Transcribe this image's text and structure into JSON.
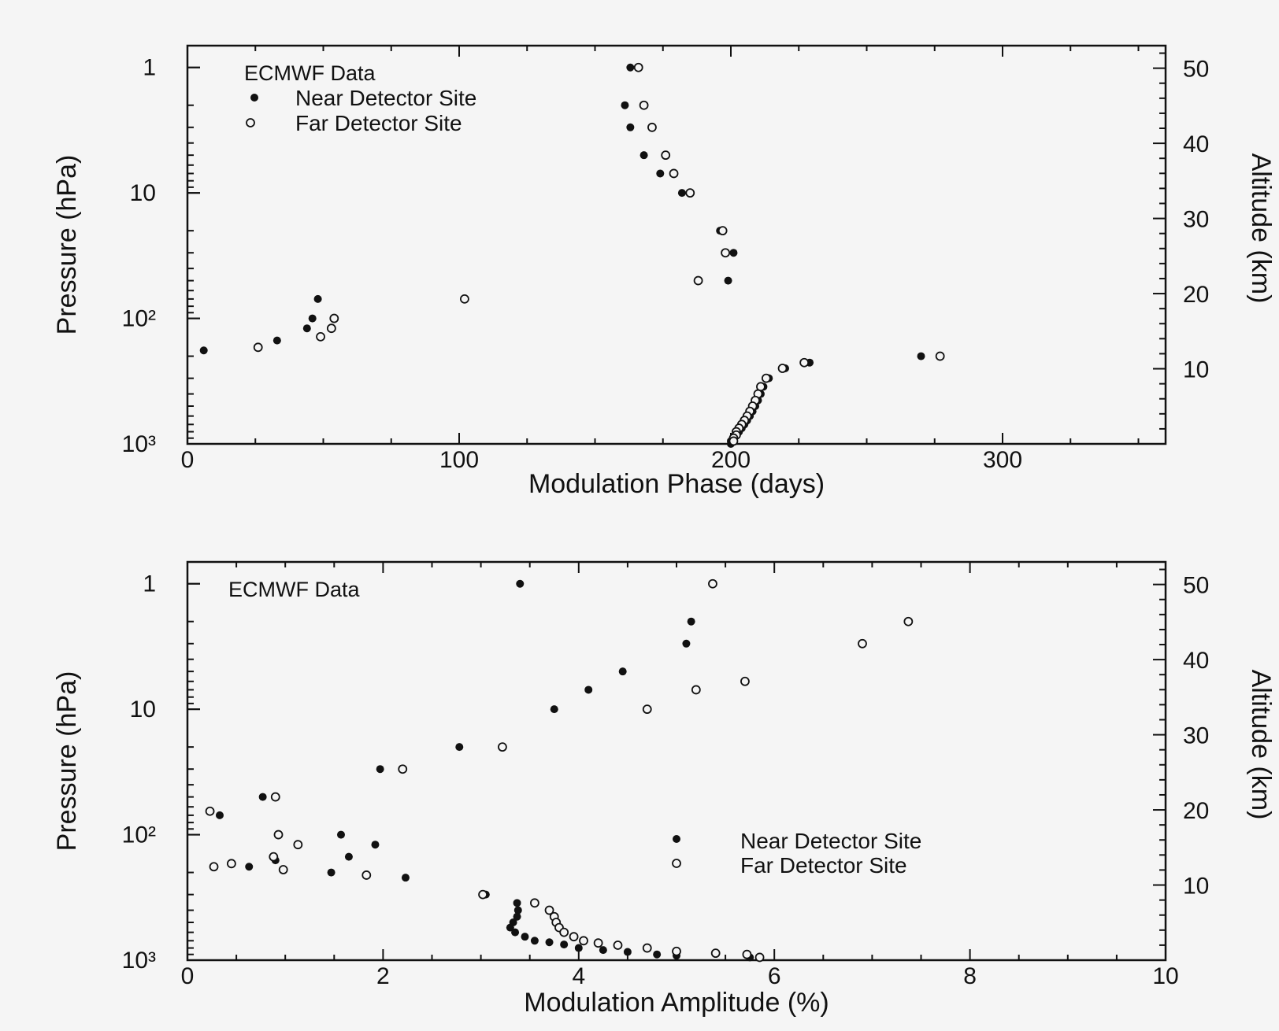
{
  "figure": {
    "background": "#f5f5f5",
    "ink_color": "#111111"
  },
  "chart_data": [
    {
      "type": "scatter",
      "title": "",
      "xlabel": "Modulation Phase (days)",
      "ylabel": "Pressure (hPa)",
      "y2label": "Altitude (km)",
      "xlim": [
        0,
        360
      ],
      "ylim": [
        1000,
        0.67
      ],
      "yscale": "log",
      "y_inverted": true,
      "y2lim": [
        0,
        53
      ],
      "grid": false,
      "x_ticks": [
        {
          "value": 0,
          "label": "0"
        },
        {
          "value": 100,
          "label": "100"
        },
        {
          "value": 200,
          "label": "200"
        },
        {
          "value": 300,
          "label": "300"
        }
      ],
      "y_ticks": [
        {
          "value": 1,
          "label": "1"
        },
        {
          "value": 10,
          "label": "10"
        },
        {
          "value": 100,
          "label": "10²"
        },
        {
          "value": 1000,
          "label": "10³"
        }
      ],
      "y2_ticks": [
        {
          "value": 10,
          "label": "10"
        },
        {
          "value": 20,
          "label": "20"
        },
        {
          "value": 30,
          "label": "30"
        },
        {
          "value": 40,
          "label": "40"
        },
        {
          "value": 50,
          "label": "50"
        }
      ],
      "legend": {
        "placement": "top-left",
        "header": "ECMWF Data",
        "entries": [
          {
            "label": "Near Detector Site",
            "marker": "filled-circle"
          },
          {
            "label": "Far Detector Site",
            "marker": "open-circle"
          }
        ]
      },
      "series": [
        {
          "name": "Near Detector Site",
          "marker": "filled",
          "points": [
            [
              163,
              1
            ],
            [
              161,
              2
            ],
            [
              163,
              3
            ],
            [
              168,
              5
            ],
            [
              174,
              7
            ],
            [
              182,
              10
            ],
            [
              196,
              20
            ],
            [
              201,
              30
            ],
            [
              199,
              50
            ],
            [
              48,
              70
            ],
            [
              46,
              100
            ],
            [
              44,
              120
            ],
            [
              33,
              150
            ],
            [
              6,
              180
            ],
            [
              270,
              200
            ],
            [
              229,
              225
            ],
            [
              220,
              250
            ],
            [
              214,
              300
            ],
            [
              212,
              350
            ],
            [
              211,
              400
            ],
            [
              210,
              450
            ],
            [
              209,
              500
            ],
            [
              208,
              550
            ],
            [
              207,
              600
            ],
            [
              206,
              650
            ],
            [
              205,
              700
            ],
            [
              204,
              750
            ],
            [
              203,
              800
            ],
            [
              202,
              850
            ],
            [
              201,
              900
            ],
            [
              200,
              950
            ],
            [
              200,
              1000
            ]
          ]
        },
        {
          "name": "Far Detector Site",
          "marker": "open",
          "points": [
            [
              166,
              1
            ],
            [
              168,
              2
            ],
            [
              171,
              3
            ],
            [
              176,
              5
            ],
            [
              179,
              7
            ],
            [
              185,
              10
            ],
            [
              197,
              20
            ],
            [
              198,
              30
            ],
            [
              188,
              50
            ],
            [
              102,
              70
            ],
            [
              54,
              100
            ],
            [
              53,
              120
            ],
            [
              49,
              140
            ],
            [
              26,
              170
            ],
            [
              277,
              200
            ],
            [
              227,
              225
            ],
            [
              219,
              250
            ],
            [
              213,
              300
            ],
            [
              211,
              350
            ],
            [
              210,
              400
            ],
            [
              209,
              450
            ],
            [
              208,
              500
            ],
            [
              207,
              550
            ],
            [
              206,
              600
            ],
            [
              205,
              650
            ],
            [
              204,
              700
            ],
            [
              203,
              750
            ],
            [
              202,
              800
            ],
            [
              202,
              850
            ],
            [
              201,
              900
            ],
            [
              201,
              950
            ]
          ]
        }
      ]
    },
    {
      "type": "scatter",
      "title": "",
      "xlabel": "Modulation Amplitude (%)",
      "ylabel": "Pressure (hPa)",
      "y2label": "Altitude (km)",
      "xlim": [
        0,
        10
      ],
      "ylim": [
        1000,
        0.67
      ],
      "yscale": "log",
      "y_inverted": true,
      "y2lim": [
        0,
        53
      ],
      "grid": false,
      "x_ticks": [
        {
          "value": 0,
          "label": "0"
        },
        {
          "value": 2,
          "label": "2"
        },
        {
          "value": 4,
          "label": "4"
        },
        {
          "value": 6,
          "label": "6"
        },
        {
          "value": 8,
          "label": "8"
        },
        {
          "value": 10,
          "label": "10"
        }
      ],
      "y_ticks": [
        {
          "value": 1,
          "label": "1"
        },
        {
          "value": 10,
          "label": "10"
        },
        {
          "value": 100,
          "label": "10²"
        },
        {
          "value": 1000,
          "label": "10³"
        }
      ],
      "y2_ticks": [
        {
          "value": 10,
          "label": "10"
        },
        {
          "value": 20,
          "label": "20"
        },
        {
          "value": 30,
          "label": "30"
        },
        {
          "value": 40,
          "label": "40"
        },
        {
          "value": 50,
          "label": "50"
        }
      ],
      "legend": {
        "placement": "center-right",
        "header": "ECMWF Data",
        "entries": [
          {
            "label": "Near Detector Site",
            "marker": "filled-circle"
          },
          {
            "label": "Far Detector Site",
            "marker": "open-circle"
          }
        ]
      },
      "series": [
        {
          "name": "Near Detector Site",
          "marker": "filled",
          "points": [
            [
              3.4,
              1
            ],
            [
              5.15,
              2
            ],
            [
              5.1,
              3
            ],
            [
              4.45,
              5
            ],
            [
              4.1,
              7
            ],
            [
              3.75,
              10
            ],
            [
              2.78,
              20
            ],
            [
              1.97,
              30
            ],
            [
              0.77,
              50
            ],
            [
              0.33,
              70
            ],
            [
              1.57,
              100
            ],
            [
              1.92,
              120
            ],
            [
              1.65,
              150
            ],
            [
              0.9,
              160
            ],
            [
              0.63,
              180
            ],
            [
              1.47,
              200
            ],
            [
              2.23,
              220
            ],
            [
              3.05,
              300
            ],
            [
              3.37,
              350
            ],
            [
              3.38,
              400
            ],
            [
              3.37,
              450
            ],
            [
              3.33,
              500
            ],
            [
              3.3,
              550
            ],
            [
              3.35,
              600
            ],
            [
              3.45,
              650
            ],
            [
              3.55,
              700
            ],
            [
              3.7,
              720
            ],
            [
              3.85,
              750
            ],
            [
              4.0,
              800
            ],
            [
              4.25,
              830
            ],
            [
              4.5,
              860
            ],
            [
              4.8,
              900
            ],
            [
              5.0,
              920
            ],
            [
              5.75,
              950
            ]
          ]
        },
        {
          "name": "Far Detector Site",
          "marker": "open",
          "points": [
            [
              5.37,
              1
            ],
            [
              7.37,
              2
            ],
            [
              6.9,
              3
            ],
            [
              5.7,
              6
            ],
            [
              5.2,
              7
            ],
            [
              4.7,
              10
            ],
            [
              3.22,
              20
            ],
            [
              2.2,
              30
            ],
            [
              0.9,
              50
            ],
            [
              0.23,
              65
            ],
            [
              0.93,
              100
            ],
            [
              1.13,
              120
            ],
            [
              0.88,
              150
            ],
            [
              0.45,
              170
            ],
            [
              0.27,
              180
            ],
            [
              0.98,
              190
            ],
            [
              1.83,
              210
            ],
            [
              3.02,
              300
            ],
            [
              3.55,
              350
            ],
            [
              3.7,
              400
            ],
            [
              3.75,
              450
            ],
            [
              3.77,
              500
            ],
            [
              3.8,
              550
            ],
            [
              3.85,
              600
            ],
            [
              3.95,
              650
            ],
            [
              4.05,
              700
            ],
            [
              4.2,
              730
            ],
            [
              4.4,
              760
            ],
            [
              4.7,
              800
            ],
            [
              5.0,
              850
            ],
            [
              5.4,
              880
            ],
            [
              5.72,
              900
            ],
            [
              5.85,
              950
            ]
          ]
        }
      ]
    }
  ]
}
